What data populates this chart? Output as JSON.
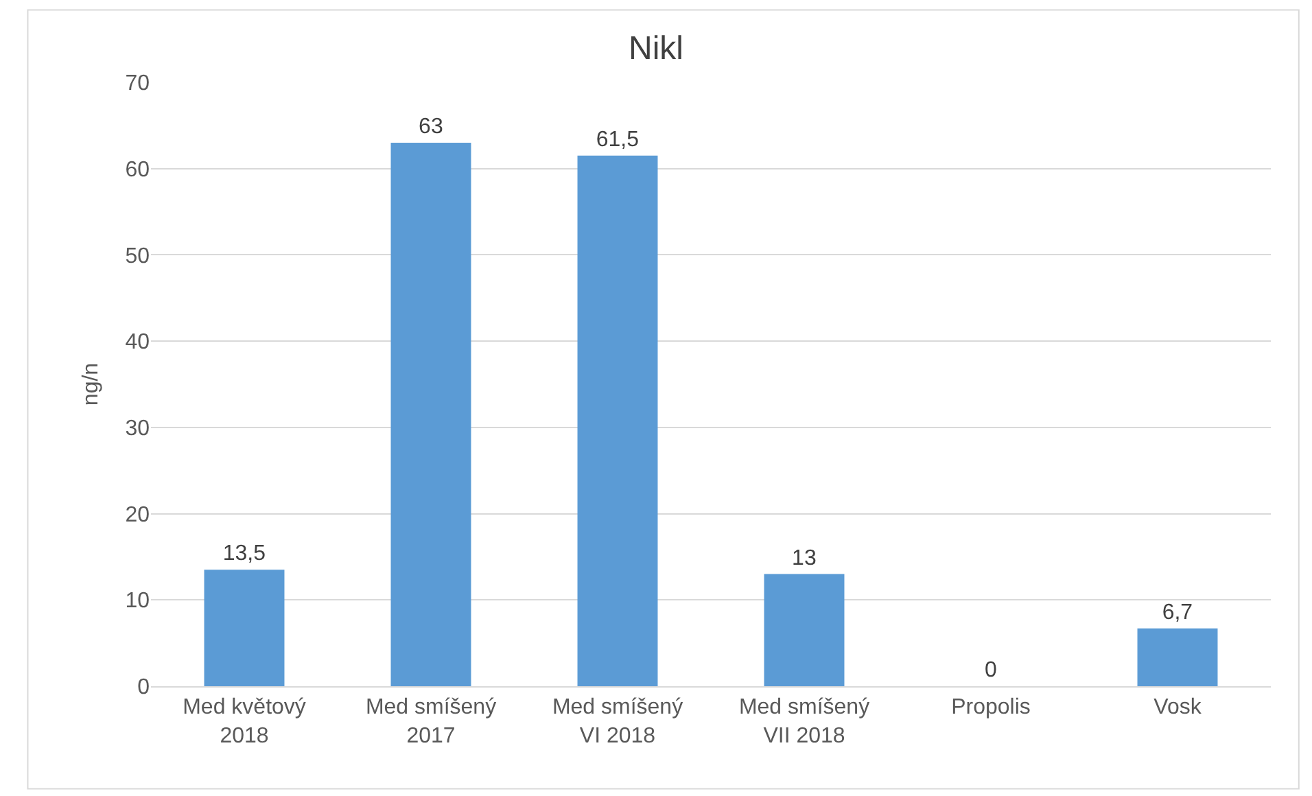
{
  "chart_data": {
    "type": "bar",
    "title": "Nikl",
    "ylabel": "ng/n",
    "categories": [
      "Med květový\n2018",
      "Med smíšený\n2017",
      "Med smíšený\nVI 2018",
      "Med smíšený\nVII 2018",
      "Propolis",
      "Vosk"
    ],
    "values": [
      13.5,
      63,
      61.5,
      13,
      0,
      6.7
    ],
    "value_labels": [
      "13,5",
      "63",
      "61,5",
      "13",
      "0",
      "6,7"
    ],
    "color": "#5b9bd5",
    "ylim": [
      0,
      70
    ],
    "yticks": [
      0,
      10,
      20,
      30,
      40,
      50,
      60,
      70
    ],
    "grid": "y"
  }
}
